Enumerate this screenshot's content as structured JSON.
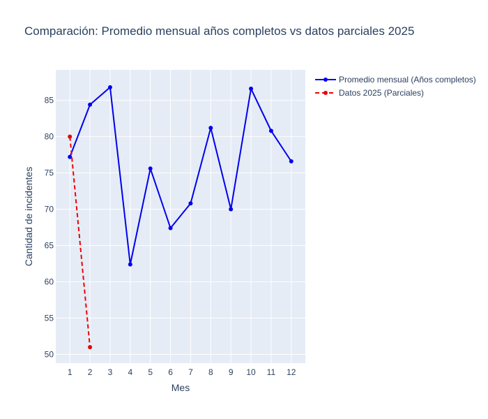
{
  "chart_data": {
    "type": "line",
    "title": "Comparación: Promedio mensual años completos vs datos parciales 2025",
    "xlabel": "Mes",
    "ylabel": "Cantidad de incidentes",
    "x_ticks": [
      "1",
      "2",
      "3",
      "4",
      "5",
      "6",
      "7",
      "8",
      "9",
      "10",
      "11",
      "12"
    ],
    "y_ticks": [
      "50",
      "55",
      "60",
      "65",
      "70",
      "75",
      "80",
      "85"
    ],
    "xlim": [
      0.3,
      12.7
    ],
    "ylim": [
      48.8,
      89.2
    ],
    "grid": true,
    "legend_position": "top-right",
    "series": [
      {
        "name": "Promedio mensual (Años completos)",
        "color": "#0000ee",
        "style": "solid",
        "x": [
          1,
          2,
          3,
          4,
          5,
          6,
          7,
          8,
          9,
          10,
          11,
          12
        ],
        "y": [
          77.2,
          84.4,
          86.8,
          62.4,
          75.6,
          67.4,
          70.8,
          81.2,
          70.0,
          86.6,
          80.8,
          76.6
        ]
      },
      {
        "name": "Datos 2025 (Parciales)",
        "color": "#ee0000",
        "style": "dashed",
        "x": [
          1,
          2
        ],
        "y": [
          80.0,
          51.0
        ]
      }
    ]
  }
}
